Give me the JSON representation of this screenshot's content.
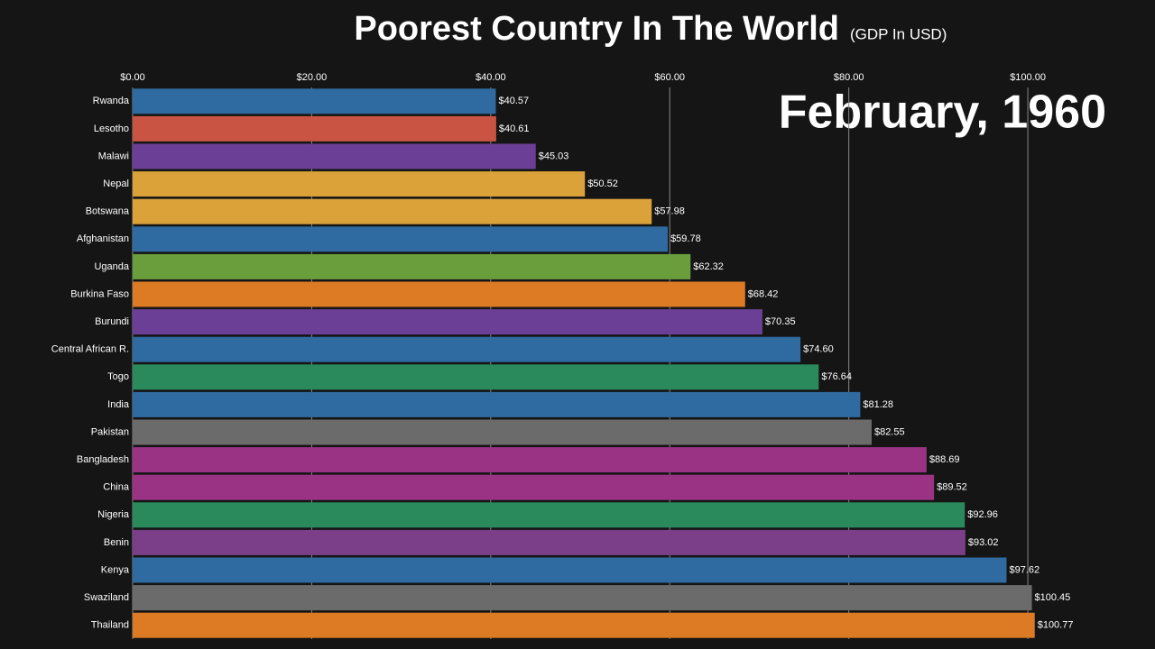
{
  "chart_data": {
    "type": "bar",
    "orientation": "horizontal",
    "title": "Poorest Country In The World",
    "subtitle": "(GDP In USD)",
    "annotation": "February, 1960",
    "categories": [
      "Rwanda",
      "Lesotho",
      "Malawi",
      "Nepal",
      "Botswana",
      "Afghanistan",
      "Uganda",
      "Burkina Faso",
      "Burundi",
      "Central African R.",
      "Togo",
      "India",
      "Pakistan",
      "Bangladesh",
      "China",
      "Nigeria",
      "Benin",
      "Kenya",
      "Swaziland",
      "Thailand"
    ],
    "values": [
      40.57,
      40.61,
      45.03,
      50.52,
      57.98,
      59.78,
      62.32,
      68.42,
      70.35,
      74.6,
      76.64,
      81.28,
      82.55,
      88.69,
      89.52,
      92.96,
      93.02,
      97.62,
      100.45,
      100.77
    ],
    "value_labels": [
      "$40.57",
      "$40.61",
      "$45.03",
      "$50.52",
      "$57.98",
      "$59.78",
      "$62.32",
      "$68.42",
      "$70.35",
      "$74.60",
      "$76.64",
      "$81.28",
      "$82.55",
      "$88.69",
      "$89.52",
      "$92.96",
      "$93.02",
      "$97.62",
      "$100.45",
      "$100.77"
    ],
    "colors": [
      "#2f6aa0",
      "#c95444",
      "#6b3f96",
      "#dba23a",
      "#dba23a",
      "#2f6aa0",
      "#6a9e3c",
      "#dd7a24",
      "#6b3f96",
      "#2f6aa0",
      "#2a8a5c",
      "#2f6aa0",
      "#6b6b6b",
      "#9a3383",
      "#9a3383",
      "#2a8a5c",
      "#7a3f88",
      "#2f6aa0",
      "#6b6b6b",
      "#dd7a24"
    ],
    "xlim": [
      0,
      101
    ],
    "xticks": [
      {
        "value": 0,
        "label": "$0.00"
      },
      {
        "value": 20,
        "label": "$20.00"
      },
      {
        "value": 40,
        "label": "$40.00"
      },
      {
        "value": 60,
        "label": "$60.00"
      },
      {
        "value": 80,
        "label": "$80.00"
      },
      {
        "value": 100,
        "label": "$100.00"
      }
    ],
    "grid": true
  }
}
